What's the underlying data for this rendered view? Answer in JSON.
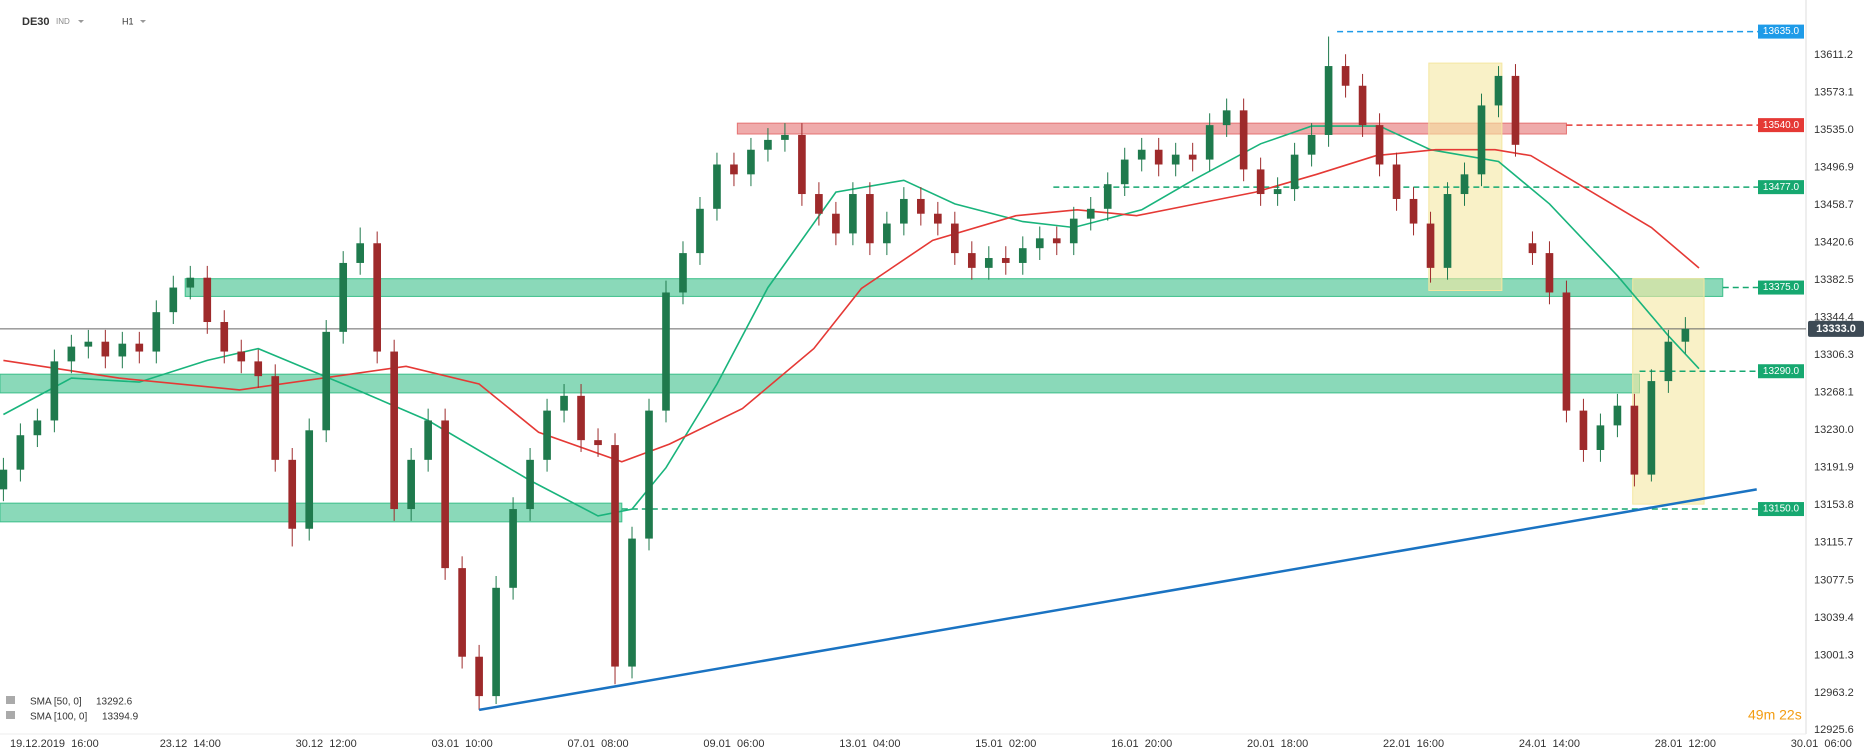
{
  "chart_data": {
    "type": "candlestick",
    "symbol": "DE30",
    "market": "IND",
    "timeframe": "H1",
    "x": [
      0,
      1,
      2,
      3,
      4,
      5,
      6,
      7,
      8,
      9,
      10,
      11,
      12,
      13,
      14,
      15,
      16,
      17,
      18,
      19,
      20,
      21,
      22,
      23,
      24,
      25,
      26,
      27,
      28,
      29,
      30,
      31,
      32,
      33,
      34,
      35,
      36,
      37,
      38,
      39,
      40,
      41,
      42,
      43,
      44,
      45,
      46,
      47,
      48,
      49,
      50,
      51,
      52,
      53,
      54,
      55,
      56,
      57,
      58,
      59,
      60,
      61,
      62,
      63,
      64,
      65,
      66,
      67,
      68,
      69,
      70,
      71,
      72,
      73,
      74,
      75,
      76,
      77,
      78,
      79,
      80,
      81,
      82,
      83,
      84,
      85,
      86,
      87,
      88,
      89,
      90,
      91,
      92,
      93,
      94,
      95,
      96,
      97,
      98,
      99
    ],
    "open": [
      13170,
      13190,
      13225,
      13240,
      13300,
      13315,
      13320,
      13305,
      13318,
      13310,
      13350,
      13375,
      13385,
      13340,
      13310,
      13300,
      13285,
      13200,
      13130,
      13230,
      13330,
      13400,
      13420,
      13310,
      13150,
      13200,
      13240,
      13090,
      13000,
      12960,
      13070,
      13150,
      13200,
      13250,
      13265,
      13220,
      13215,
      12990,
      13120,
      13250,
      13370,
      13410,
      13455,
      13500,
      13490,
      13515,
      13525,
      13530,
      13470,
      13450,
      13430,
      13470,
      13420,
      13440,
      13465,
      13450,
      13440,
      13410,
      13395,
      13405,
      13400,
      13415,
      13425,
      13420,
      13445,
      13455,
      13480,
      13505,
      13515,
      13500,
      13510,
      13505,
      13540,
      13555,
      13495,
      13470,
      13475,
      13510,
      13530,
      13600,
      13580,
      13540,
      13500,
      13465,
      13440,
      13395,
      13470,
      13490,
      13560,
      13590,
      13420,
      13410,
      13370,
      13250,
      13210,
      13235,
      13255,
      13185,
      13280,
      13320
    ],
    "high": [
      13202,
      13237,
      13252,
      13312,
      13327,
      13332,
      13332,
      13330,
      13330,
      13362,
      13387,
      13397,
      13397,
      13352,
      13322,
      13312,
      13297,
      13212,
      13242,
      13342,
      13412,
      13436,
      13432,
      13322,
      13212,
      13252,
      13252,
      13102,
      13012,
      13082,
      13162,
      13212,
      13262,
      13277,
      13277,
      13232,
      13227,
      13132,
      13262,
      13382,
      13422,
      13467,
      13512,
      13512,
      13527,
      13537,
      13542,
      13542,
      13482,
      13462,
      13482,
      13482,
      13452,
      13477,
      13477,
      13462,
      13452,
      13422,
      13417,
      13417,
      13427,
      13437,
      13437,
      13457,
      13467,
      13492,
      13517,
      13527,
      13527,
      13522,
      13522,
      13552,
      13567,
      13567,
      13507,
      13487,
      13522,
      13542,
      13630,
      13612,
      13592,
      13552,
      13512,
      13477,
      13452,
      13482,
      13502,
      13572,
      13600,
      13602,
      13432,
      13422,
      13382,
      13262,
      13247,
      13267,
      13267,
      13292,
      13332,
      13345
    ],
    "low": [
      13158,
      13178,
      13213,
      13228,
      13288,
      13303,
      13293,
      13293,
      13298,
      13298,
      13338,
      13363,
      13328,
      13298,
      13288,
      13273,
      13188,
      13112,
      13118,
      13218,
      13318,
      13388,
      13298,
      13138,
      13138,
      13188,
      13078,
      12988,
      12946,
      12952,
      13058,
      13138,
      13188,
      13238,
      13208,
      13203,
      12972,
      12978,
      13108,
      13238,
      13358,
      13398,
      13443,
      13478,
      13478,
      13503,
      13513,
      13458,
      13438,
      13418,
      13418,
      13408,
      13408,
      13428,
      13438,
      13428,
      13398,
      13383,
      13383,
      13388,
      13388,
      13403,
      13408,
      13408,
      13433,
      13443,
      13468,
      13493,
      13488,
      13488,
      13493,
      13493,
      13528,
      13483,
      13458,
      13458,
      13463,
      13498,
      13518,
      13568,
      13528,
      13488,
      13453,
      13428,
      13380,
      13383,
      13458,
      13478,
      13548,
      13508,
      13398,
      13358,
      13238,
      13198,
      13198,
      13223,
      13173,
      13178,
      13268,
      13308
    ],
    "close": [
      13190,
      13225,
      13240,
      13300,
      13315,
      13320,
      13305,
      13318,
      13310,
      13350,
      13375,
      13385,
      13340,
      13310,
      13300,
      13285,
      13200,
      13130,
      13230,
      13330,
      13400,
      13420,
      13310,
      13150,
      13200,
      13240,
      13090,
      13000,
      12960,
      13070,
      13150,
      13200,
      13250,
      13265,
      13220,
      13215,
      12990,
      13120,
      13250,
      13370,
      13410,
      13455,
      13500,
      13490,
      13515,
      13525,
      13530,
      13470,
      13450,
      13430,
      13470,
      13420,
      13440,
      13465,
      13450,
      13440,
      13410,
      13395,
      13405,
      13400,
      13415,
      13425,
      13420,
      13445,
      13455,
      13480,
      13505,
      13515,
      13500,
      13510,
      13505,
      13540,
      13555,
      13495,
      13470,
      13475,
      13510,
      13530,
      13600,
      13580,
      13540,
      13500,
      13465,
      13440,
      13395,
      13470,
      13490,
      13560,
      13590,
      13520,
      13410,
      13370,
      13250,
      13210,
      13235,
      13255,
      13185,
      13280,
      13320,
      13333
    ],
    "up_color": "#1f7a4d",
    "down_color": "#9e2a2b",
    "xlim": [
      -0.2,
      106.1
    ],
    "xticks": [
      {
        "value": 3,
        "label": "19.12.2019  16:00"
      },
      {
        "value": 11,
        "label": "23.12  14:00"
      },
      {
        "value": 19,
        "label": "30.12  12:00"
      },
      {
        "value": 27,
        "label": "03.01  10:00"
      },
      {
        "value": 35,
        "label": "07.01  08:00"
      },
      {
        "value": 43,
        "label": "09.01  06:00"
      },
      {
        "value": 51,
        "label": "13.01  04:00"
      },
      {
        "value": 59,
        "label": "15.01  02:00"
      },
      {
        "value": 67,
        "label": "16.01  20:00"
      },
      {
        "value": 75,
        "label": "20.01  18:00"
      },
      {
        "value": 83,
        "label": "22.01  16:00"
      },
      {
        "value": 91,
        "label": "24.01  14:00"
      },
      {
        "value": 99,
        "label": "28.01  12:00"
      },
      {
        "value": 107,
        "label": "30.01  06:00"
      }
    ],
    "ylim": [
      12921.5,
      13667.1
    ],
    "yticks": [
      13611.2,
      13573.1,
      {
        "value": 13535,
        "label": "13535.0"
      },
      13496.9,
      13458.7,
      13420.6,
      13382.5,
      13344.4,
      13306.3,
      13268.1,
      {
        "value": 13230,
        "label": "13230.0"
      },
      13191.9,
      13153.8,
      13115.7,
      13077.5,
      13039.4,
      13001.3,
      12963.2,
      12925.6
    ],
    "lines": [
      {
        "name": "SMA [50, 0]",
        "last": 13292.6,
        "color": "#19b47c",
        "x": [
          0,
          4,
          8,
          12,
          15,
          20,
          25,
          31,
          35,
          37,
          39,
          42,
          45,
          49,
          53,
          56,
          60,
          63,
          67,
          70,
          74,
          77,
          81,
          84,
          88,
          91,
          95,
          98,
          99.8
        ],
        "values": [
          13246,
          13283,
          13279,
          13301,
          13313,
          13277,
          13240,
          13179,
          13143,
          13150,
          13192,
          13277,
          13375,
          13472,
          13484,
          13460,
          13442,
          13436,
          13454,
          13484,
          13521,
          13539,
          13539,
          13515,
          13503,
          13460,
          13387,
          13326,
          13292.6
        ]
      },
      {
        "name": "SMA [100, 0]",
        "last": 13394.9,
        "color": "#e53935",
        "x": [
          0,
          6.8,
          13.9,
          23.7,
          28,
          31.5,
          36.4,
          39.2,
          43.5,
          47.7,
          50.5,
          54.7,
          59.6,
          63.2,
          66.7,
          70.2,
          73.7,
          77.3,
          80.8,
          84.3,
          87.8,
          89.9,
          93.5,
          97,
          99.8
        ],
        "values": [
          13301,
          13283,
          13271,
          13295,
          13277,
          13228,
          13198,
          13216,
          13252,
          13313,
          13374,
          13423,
          13448,
          13454,
          13448,
          13460,
          13472,
          13490,
          13509,
          13515,
          13515,
          13509,
          13472,
          13436,
          13394.9
        ]
      }
    ],
    "levels": [
      {
        "value": 13635,
        "label": "13635.0",
        "color": "#1e9be8",
        "from": 78.5
      },
      {
        "value": 13540,
        "label": "13540.0",
        "color": "#e53935",
        "from": 92
      },
      {
        "value": 13477,
        "label": "13477.0",
        "color": "#16a870",
        "from": 61.8
      },
      {
        "value": 13375,
        "label": "13375.0",
        "color": "#16a870",
        "from": 101.2
      },
      {
        "value": 13290,
        "label": "13290.0",
        "color": "#16a870",
        "from": 96.3
      },
      {
        "value": 13150,
        "label": "13150.0",
        "color": "#16a870",
        "from": 36.4
      }
    ],
    "current": {
      "value": 13333,
      "label": "13333.0",
      "color": "#3d4a55"
    },
    "bands": [
      {
        "from": 13366,
        "to": 13384,
        "x": [
          10.7,
          101.2
        ],
        "color": "#3cbf8a"
      },
      {
        "from": 13268,
        "to": 13287,
        "x": [
          -0.2,
          96.3
        ],
        "color": "#3cbf8a"
      },
      {
        "from": 13137,
        "to": 13156,
        "x": [
          -0.2,
          36.4
        ],
        "color": "#3cbf8a"
      },
      {
        "from": 13531,
        "to": 13542,
        "x": [
          43.2,
          92
        ],
        "color": "#e57373"
      },
      {
        "from": 13372,
        "to": 13603,
        "x": [
          83.9,
          88.2
        ],
        "color": "#f5e7a1"
      },
      {
        "from": 13155,
        "to": 13384,
        "x": [
          95.9,
          100.1
        ],
        "color": "#f5e7a1"
      }
    ],
    "trend": {
      "color": "#1a73c2",
      "x": [
        28,
        103.2
      ],
      "values": [
        12946,
        13170
      ]
    },
    "timer": "49m 22s"
  }
}
